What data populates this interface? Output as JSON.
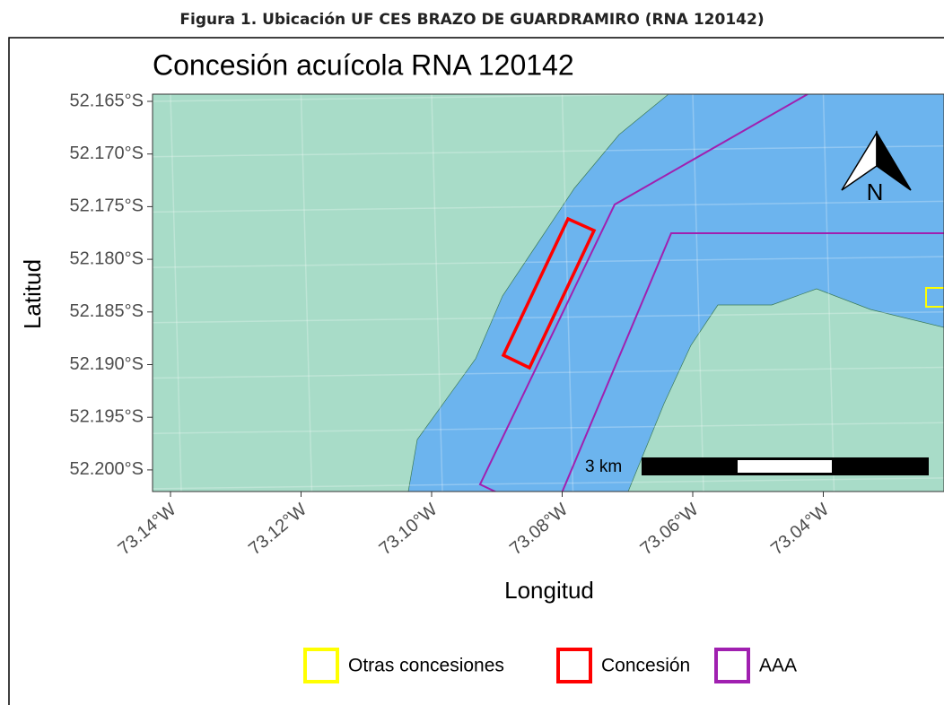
{
  "caption": "Figura 1.  Ubicación UF CES BRAZO DE GUARDRAMIRO (RNA 120142)",
  "map": {
    "title": "Concesión acuícola RNA 120142",
    "x_label": "Longitud",
    "y_label": "Latitud",
    "yticks": [
      "52.165°S",
      "52.170°S",
      "52.175°S",
      "52.180°S",
      "52.185°S",
      "52.190°S",
      "52.195°S",
      "52.200°S"
    ],
    "xticks": [
      "73.14°W",
      "73.12°W",
      "73.10°W",
      "73.08°W",
      "73.06°W",
      "73.04°W"
    ],
    "scale_bar": "3 km",
    "north": "N",
    "legend": [
      {
        "name": "Otras concesiones",
        "color": "#ffff00"
      },
      {
        "name": "Concesión",
        "color": "#ff0000"
      },
      {
        "name": "AAA",
        "color": "#a020b0"
      }
    ]
  }
}
